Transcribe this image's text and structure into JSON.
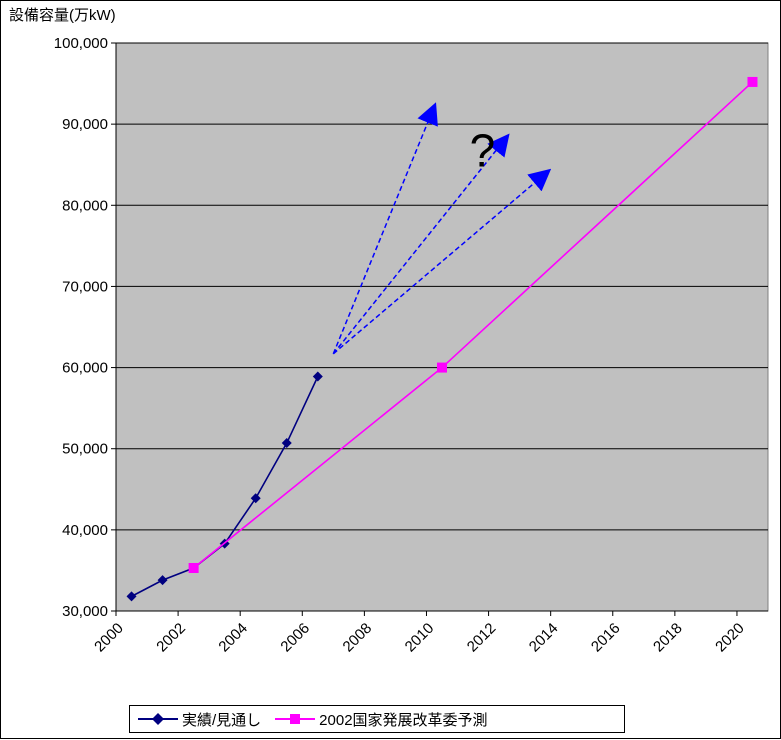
{
  "chart_data": {
    "type": "line",
    "ylabel": "設備容量(万kW)",
    "ylim": [
      30000,
      100000
    ],
    "xlim": [
      2000,
      2021
    ],
    "y_ticks": [
      30000,
      40000,
      50000,
      60000,
      70000,
      80000,
      90000,
      100000
    ],
    "y_tick_labels": [
      "30,000",
      "40,000",
      "50,000",
      "60,000",
      "70,000",
      "80,000",
      "90,000",
      "100,000"
    ],
    "x_ticks": [
      2000,
      2002,
      2004,
      2006,
      2008,
      2010,
      2012,
      2014,
      2016,
      2018,
      2020
    ],
    "x_tick_labels": [
      "2000",
      "2002",
      "2004",
      "2006",
      "2008",
      "2010",
      "2012",
      "2014",
      "2016",
      "2018",
      "2020"
    ],
    "grid": "horizontal",
    "legend_position": "bottom",
    "series": [
      {
        "name": "実績/見通し",
        "color": "#000080",
        "marker": "diamond",
        "x": [
          2000.5,
          2001.5,
          2002.5,
          2003.5,
          2004.5,
          2005.5,
          2006.5
        ],
        "y": [
          31800,
          33800,
          35300,
          38300,
          43900,
          50700,
          58900
        ]
      },
      {
        "name": "2002国家発展改革委予測",
        "color": "#ff00ff",
        "marker": "square",
        "x": [
          2002.5,
          2010.5,
          2020.5
        ],
        "y": [
          35300,
          60000,
          95200
        ]
      }
    ],
    "annotations": {
      "question_mark": "?",
      "arrows_color": "#0000ff",
      "arrows": [
        {
          "from": [
            2007,
            61700
          ],
          "to": [
            2010.2,
            91700
          ]
        },
        {
          "from": [
            2007,
            61700
          ],
          "to": [
            2012.5,
            88000
          ]
        },
        {
          "from": [
            2007,
            61700
          ],
          "to": [
            2013.8,
            83800
          ]
        }
      ],
      "question_position": [
        2011.8,
        84800
      ]
    },
    "plot_background": "#c0c0c0"
  }
}
